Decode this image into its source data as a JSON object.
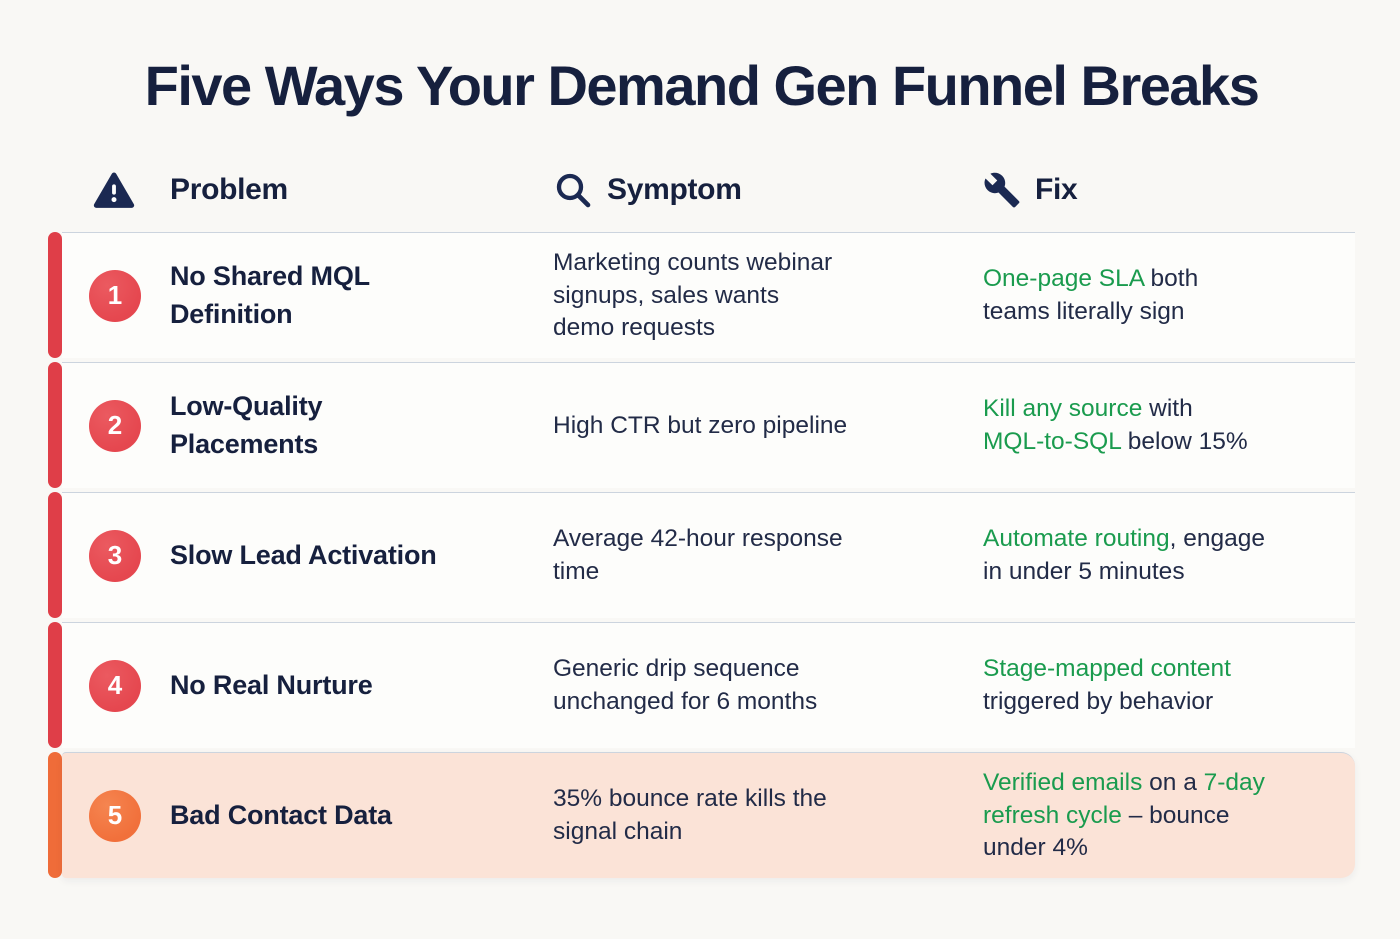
{
  "page": {
    "title": "Five Ways Your Demand Gen Funnel Breaks"
  },
  "columns": {
    "problem": {
      "label": "Problem",
      "icon": "warning-triangle-icon"
    },
    "symptom": {
      "label": "Symptom",
      "icon": "search-icon"
    },
    "fix": {
      "label": "Fix",
      "icon": "wrench-icon"
    }
  },
  "colors": {
    "page_bg": "#F9F8F5",
    "card_bg": "#FDFDFB",
    "highlight_row_bg": "#FBE3D7",
    "navy": "#16203E",
    "body_text": "#222B47",
    "green": "#1A9B4E",
    "red_accent": "#DF3E48",
    "red_circle": "#E5474F",
    "orange_accent": "#EF6C39",
    "orange_circle": "#F1703B",
    "separator": "#CCD4DE"
  },
  "rows": [
    {
      "number": "1",
      "accent": "red",
      "highlighted": false,
      "problem": "No Shared MQL\nDefinition",
      "symptom": "Marketing counts webinar\nsignups, sales wants\ndemo requests",
      "fix_segments": [
        {
          "text": "One-page SLA",
          "color": "green"
        },
        {
          "text": " both\nteams literally sign",
          "color": "dark"
        }
      ]
    },
    {
      "number": "2",
      "accent": "red",
      "highlighted": false,
      "problem": "Low-Quality\nPlacements",
      "symptom": "High CTR but zero pipeline",
      "fix_segments": [
        {
          "text": "Kill any source",
          "color": "green"
        },
        {
          "text": " with\n",
          "color": "dark"
        },
        {
          "text": "MQL-to-SQL",
          "color": "green"
        },
        {
          "text": " below 15%",
          "color": "dark"
        }
      ]
    },
    {
      "number": "3",
      "accent": "red",
      "highlighted": false,
      "problem": "Slow Lead Activation",
      "symptom": "Average 42-hour response\ntime",
      "fix_segments": [
        {
          "text": "Automate routing",
          "color": "green"
        },
        {
          "text": ", engage\nin under 5 minutes",
          "color": "dark"
        }
      ]
    },
    {
      "number": "4",
      "accent": "red",
      "highlighted": false,
      "problem": "No Real Nurture",
      "symptom": "Generic drip sequence\nunchanged for 6 months",
      "fix_segments": [
        {
          "text": "Stage-mapped content",
          "color": "green"
        },
        {
          "text": "\ntriggered by behavior",
          "color": "dark"
        }
      ]
    },
    {
      "number": "5",
      "accent": "orange",
      "highlighted": true,
      "problem": "Bad Contact Data",
      "symptom": "35% bounce rate kills the\nsignal chain",
      "fix_segments": [
        {
          "text": "Verified emails",
          "color": "green"
        },
        {
          "text": " on a ",
          "color": "dark"
        },
        {
          "text": "7-day\nrefresh cycle",
          "color": "green"
        },
        {
          "text": " – bounce\nunder 4%",
          "color": "dark"
        }
      ]
    }
  ]
}
